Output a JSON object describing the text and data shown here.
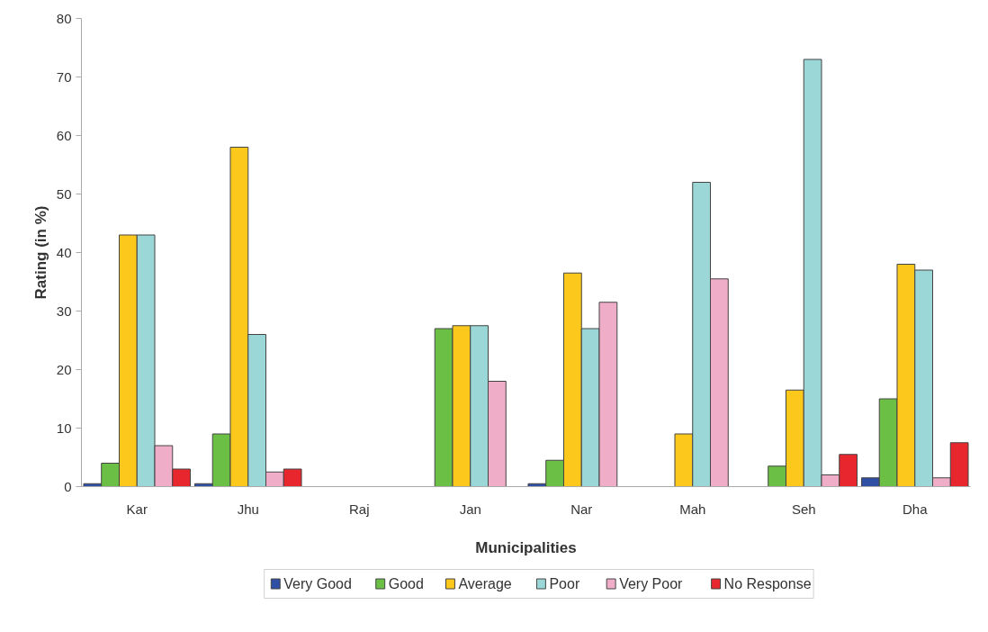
{
  "chart_data": {
    "type": "bar",
    "xlabel": "Municipalities",
    "ylabel": "Rating (in %)",
    "categories": [
      "Kar",
      "Jhu",
      "Raj",
      "Jan",
      "Nar",
      "Mah",
      "Seh",
      "Dha"
    ],
    "series": [
      {
        "name": "Very Good",
        "color": "#2e4fa3",
        "values": [
          0.5,
          0.5,
          null,
          null,
          0.5,
          null,
          null,
          1.5
        ]
      },
      {
        "name": "Good",
        "color": "#6cbf45",
        "values": [
          4,
          9,
          null,
          27,
          4.5,
          null,
          3.5,
          15
        ]
      },
      {
        "name": "Average",
        "color": "#fcc81c",
        "values": [
          43,
          58,
          null,
          27.5,
          36.5,
          9,
          16.5,
          38
        ]
      },
      {
        "name": "Poor",
        "color": "#9ad7d6",
        "values": [
          43,
          26,
          null,
          27.5,
          27,
          52,
          73,
          37
        ]
      },
      {
        "name": "Very Poor",
        "color": "#f0adc8",
        "values": [
          7,
          2.5,
          null,
          18,
          31.5,
          35.5,
          2,
          1.5
        ]
      },
      {
        "name": "No Response",
        "color": "#e8262e",
        "values": [
          3,
          3,
          null,
          null,
          null,
          null,
          5.5,
          7.5
        ]
      }
    ],
    "ylim": [
      0,
      80
    ],
    "yticks": [
      0,
      10,
      20,
      30,
      40,
      50,
      60,
      70,
      80
    ],
    "grid": false,
    "legend": "bottom"
  }
}
